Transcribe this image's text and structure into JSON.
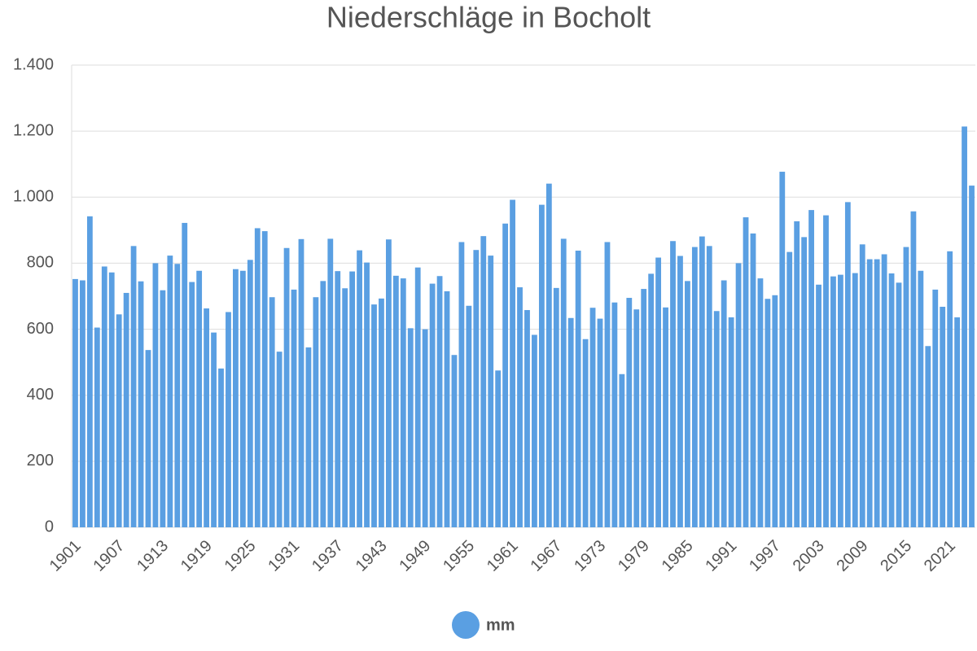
{
  "chart_data": {
    "type": "bar",
    "title": "Niederschläge in Bocholt",
    "categories": [
      "1901",
      null,
      null,
      null,
      null,
      null,
      "1907",
      null,
      null,
      null,
      null,
      null,
      "1913",
      null,
      null,
      null,
      null,
      null,
      "1919",
      null,
      null,
      null,
      null,
      null,
      "1925",
      null,
      null,
      null,
      null,
      null,
      "1931",
      null,
      null,
      null,
      null,
      null,
      "1937",
      null,
      null,
      null,
      null,
      null,
      "1943",
      null,
      null,
      null,
      null,
      null,
      "1949",
      null,
      null,
      null,
      null,
      null,
      "1955",
      null,
      null,
      null,
      null,
      null,
      "1961",
      null,
      null,
      null,
      null,
      null,
      "1967",
      null,
      null,
      null,
      null,
      null,
      "1973",
      null,
      null,
      null,
      null,
      null,
      "1979",
      null,
      null,
      null,
      null,
      null,
      "1985",
      null,
      null,
      null,
      null,
      null,
      "1991",
      null,
      null,
      null,
      null,
      null,
      "1997",
      null,
      null,
      null,
      null,
      null,
      "2003",
      null,
      null,
      null,
      null,
      null,
      "2009",
      null,
      null,
      null,
      null,
      null,
      "2015",
      null,
      null,
      null,
      null,
      null,
      "2021",
      null,
      null,
      null
    ],
    "series": [
      {
        "name": "mm",
        "color": "#5a9fe2",
        "values": [
          752,
          748,
          942,
          605,
          790,
          772,
          645,
          710,
          852,
          745,
          537,
          800,
          718,
          823,
          798,
          922,
          743,
          777,
          663,
          590,
          481,
          652,
          782,
          777,
          810,
          906,
          897,
          697,
          532,
          846,
          720,
          873,
          545,
          697,
          746,
          874,
          776,
          724,
          775,
          839,
          802,
          675,
          693,
          872,
          762,
          754,
          603,
          787,
          600,
          738,
          761,
          715,
          522,
          864,
          671,
          840,
          882,
          823,
          475,
          920,
          992,
          727,
          658,
          583,
          977,
          1041,
          725,
          874,
          634,
          838,
          570,
          665,
          632,
          864,
          681,
          464,
          695,
          660,
          722,
          768,
          817,
          666,
          867,
          822,
          746,
          849,
          881,
          852,
          655,
          748,
          636,
          800,
          939,
          890,
          754,
          692,
          703,
          1077,
          834,
          927,
          879,
          961,
          735,
          945,
          760,
          765,
          985,
          770,
          857,
          812,
          812,
          827,
          769,
          741,
          849,
          957,
          777,
          549,
          720,
          668,
          836,
          636,
          1214,
          1035
        ]
      }
    ],
    "ylim": [
      0,
      1400
    ],
    "yticks": [
      0,
      200,
      400,
      600,
      800,
      {
        "value": 1000,
        "label": "1.000"
      },
      {
        "value": 1200,
        "label": "1.200"
      },
      {
        "value": 1400,
        "label": "1.400"
      }
    ],
    "grid": true
  }
}
